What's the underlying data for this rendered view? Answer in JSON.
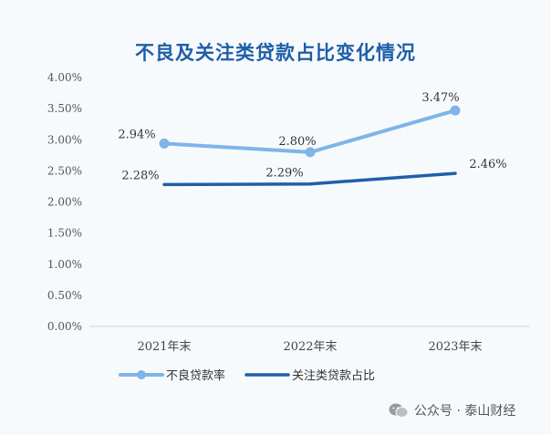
{
  "chart_data": {
    "type": "line",
    "title": "不良及关注类贷款占比变化情况",
    "categories": [
      "2021年末",
      "2022年末",
      "2023年末"
    ],
    "yticks": [
      "0.00%",
      "0.50%",
      "1.00%",
      "1.50%",
      "2.00%",
      "2.50%",
      "3.00%",
      "3.50%",
      "4.00%"
    ],
    "ylim": [
      0,
      4
    ],
    "grid": false,
    "legend_placement": "bottom",
    "series": [
      {
        "name": "不良贷款率",
        "values": [
          2.94,
          2.8,
          3.47
        ],
        "labels": [
          "2.94%",
          "2.80%",
          "3.47%"
        ],
        "color": "#7fb4e8",
        "markers": true
      },
      {
        "name": "关注类贷款占比",
        "values": [
          2.28,
          2.29,
          2.46
        ],
        "labels": [
          "2.28%",
          "2.29%",
          "2.46%"
        ],
        "color": "#1f5fa8",
        "markers": false
      }
    ]
  },
  "watermark": {
    "text": "公众号 · 泰山财经",
    "icon": "wechat-icon"
  }
}
